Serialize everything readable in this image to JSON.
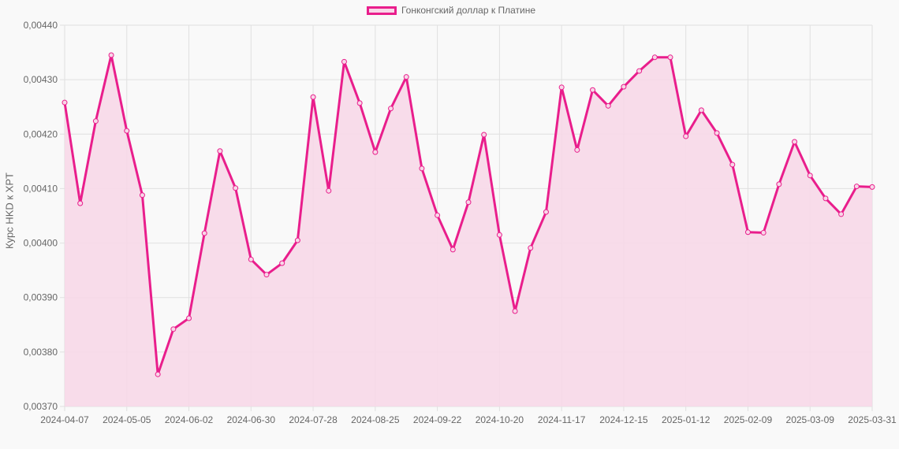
{
  "chart_data": {
    "type": "line",
    "title": "",
    "legend": [
      {
        "label": "Гонконгский доллар к Платине",
        "color": "#e91e8c",
        "fill": "#f8d7e8"
      }
    ],
    "legend_position": "top",
    "xlabel": "",
    "ylabel": "Курс HKD к XPT",
    "ylim": [
      0.0037,
      0.0044
    ],
    "y_ticks": [
      "0,00370",
      "0,00380",
      "0,00390",
      "0,00400",
      "0,00410",
      "0,00420",
      "0,00430",
      "0,00440"
    ],
    "x_tick_labels": [
      "2024-04-07",
      "2024-05-05",
      "2024-06-02",
      "2024-06-30",
      "2024-07-28",
      "2024-08-25",
      "2024-09-22",
      "2024-10-20",
      "2024-11-17",
      "2024-12-15",
      "2025-01-12",
      "2025-02-09",
      "2025-03-09",
      "2025-03-31"
    ],
    "x_tick_indices": [
      0,
      4,
      8,
      12,
      16,
      20,
      24,
      28,
      32,
      36,
      40,
      44,
      48,
      52
    ],
    "grid": true,
    "fill_area": true,
    "series": [
      {
        "name": "Гонконгский доллар к Платине",
        "values": [
          0.004258,
          0.004073,
          0.004224,
          0.004345,
          0.004206,
          0.004088,
          0.003759,
          0.003842,
          0.003862,
          0.004018,
          0.004169,
          0.004101,
          0.00397,
          0.003942,
          0.003963,
          0.004005,
          0.004268,
          0.004096,
          0.004333,
          0.004257,
          0.004167,
          0.004247,
          0.004305,
          0.004137,
          0.004051,
          0.003988,
          0.004075,
          0.004199,
          0.004015,
          0.003875,
          0.003991,
          0.004057,
          0.004286,
          0.004171,
          0.004281,
          0.004252,
          0.004287,
          0.004316,
          0.004341,
          0.004341,
          0.004196,
          0.004244,
          0.004202,
          0.004144,
          0.00402,
          0.004019,
          0.004108,
          0.004186,
          0.004124,
          0.004082,
          0.004053,
          0.004104,
          0.004103
        ]
      }
    ]
  },
  "legend_label": "Гонконгский доллар к Платине",
  "y_axis_title": "Курс HKD к XPT"
}
